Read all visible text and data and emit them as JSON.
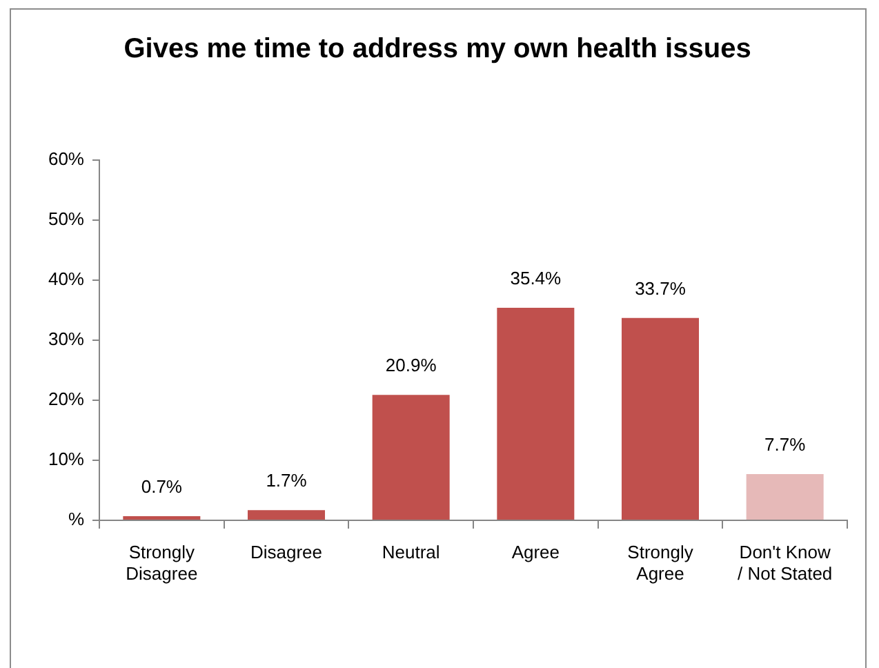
{
  "chart_data": {
    "type": "bar",
    "title": "Gives me time to address my own health issues",
    "categories": [
      "Strongly Disagree",
      "Disagree",
      "Neutral",
      "Agree",
      "Strongly Agree",
      "Don't Know / Not Stated"
    ],
    "values": [
      0.7,
      1.7,
      20.9,
      35.4,
      33.7,
      7.7
    ],
    "colors": [
      "#c0504d",
      "#c0504d",
      "#c0504d",
      "#c0504d",
      "#c0504d",
      "#e6b9b8"
    ],
    "value_labels": [
      "0.7%",
      "1.7%",
      "20.9%",
      "35.4%",
      "33.7%",
      "7.7%"
    ],
    "ylim": [
      0,
      60
    ],
    "yticks": [
      {
        "value": 0,
        "label": "%"
      },
      {
        "value": 10,
        "label": "10%"
      },
      {
        "value": 20,
        "label": "20%"
      },
      {
        "value": 30,
        "label": "30%"
      },
      {
        "value": 40,
        "label": "40%"
      },
      {
        "value": 50,
        "label": "50%"
      },
      {
        "value": 60,
        "label": "60%"
      }
    ]
  }
}
